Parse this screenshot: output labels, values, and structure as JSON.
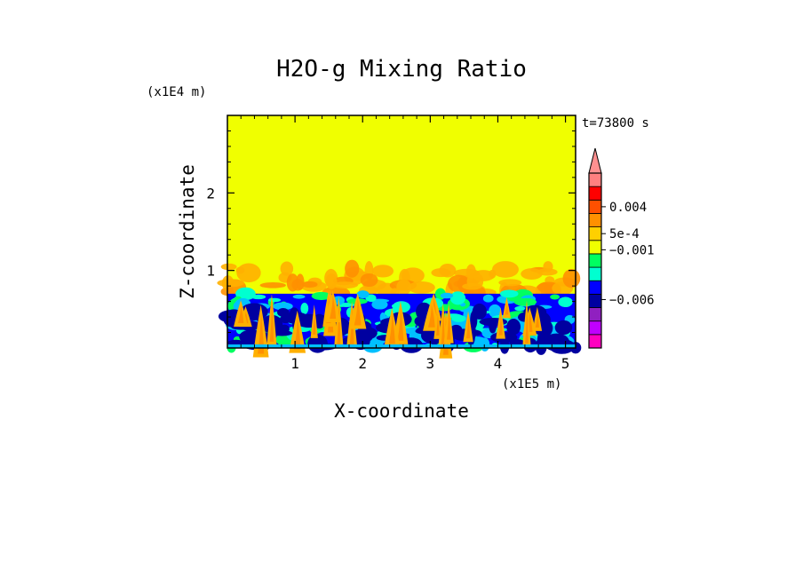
{
  "chart_data": {
    "type": "heatmap",
    "title": "H2O-g Mixing Ratio",
    "xlabel": "X-coordinate",
    "ylabel": "Z-coordinate",
    "x_scale_label": "(x1E5 m)",
    "y_scale_label": "(x1E4 m)",
    "time_label": "t=73800 s",
    "xlim": [
      0,
      5.15
    ],
    "ylim": [
      0,
      3
    ],
    "x_ticks": [
      1,
      2,
      3,
      4,
      5
    ],
    "x_tick_labels": [
      "1",
      "2",
      "3",
      "4",
      "5"
    ],
    "y_ticks": [
      1,
      2
    ],
    "y_tick_labels": [
      "1",
      "2"
    ],
    "background_value_color": "#f0ff00",
    "layer_top_z": 0.7,
    "plume_top_z": 1.05,
    "colorbar": {
      "colors": [
        "#ff00c0",
        "#c000ff",
        "#9020c0",
        "#0000a0",
        "#0000ff",
        "#00ffd0",
        "#00ff60",
        "#f0ff00",
        "#ffd000",
        "#ff9000",
        "#ff5000",
        "#ff0000",
        "#ff8080"
      ],
      "extend_top_color": "#ff9090",
      "labels": [
        {
          "text": "0.004",
          "level": 10.5
        },
        {
          "text": "5e-4",
          "level": 8.5
        },
        {
          "text": "−0.001",
          "level": 7.3
        },
        {
          "text": "−0.006",
          "level": 3.6
        }
      ]
    }
  }
}
